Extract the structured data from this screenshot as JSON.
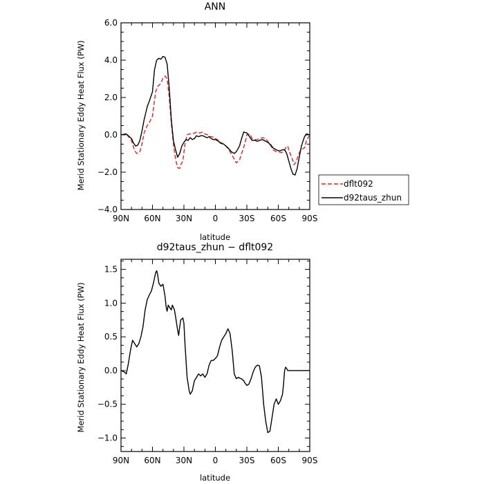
{
  "chart_data": [
    {
      "type": "line",
      "title": "ANN",
      "xlabel": "latitude",
      "ylabel": "Merid Stationary Eddy Heat Flux (PW)",
      "xlim": [
        90,
        -90
      ],
      "ylim": [
        -4.0,
        6.0
      ],
      "x_ticks": [
        {
          "value": 90,
          "label": "90N"
        },
        {
          "value": 60,
          "label": "60N"
        },
        {
          "value": 30,
          "label": "30N"
        },
        {
          "value": 0,
          "label": "0"
        },
        {
          "value": -30,
          "label": "30S"
        },
        {
          "value": -60,
          "label": "60S"
        },
        {
          "value": -90,
          "label": "90S"
        }
      ],
      "y_ticks": [
        {
          "value": -4.0,
          "label": "−4.0"
        },
        {
          "value": -2.0,
          "label": "−2.0"
        },
        {
          "value": 0.0,
          "label": "0.0"
        },
        {
          "value": 2.0,
          "label": "2.0"
        },
        {
          "value": 4.0,
          "label": "4.0"
        },
        {
          "value": 6.0,
          "label": "6.0"
        }
      ],
      "legend_position": "right",
      "series": [
        {
          "name": "dflt092",
          "color": "#e8211c",
          "dash": "dashed",
          "x": [
            90,
            85,
            80,
            77,
            75,
            72,
            70,
            68,
            65,
            63,
            60,
            57,
            55,
            53,
            51,
            50,
            48,
            46,
            44,
            42,
            40,
            38,
            36,
            34,
            33,
            31,
            29,
            27,
            25,
            22,
            20,
            17,
            15,
            12,
            10,
            7,
            5,
            3,
            0,
            -3,
            -5,
            -8,
            -10,
            -13,
            -15,
            -18,
            -20,
            -23,
            -25,
            -28,
            -30,
            -33,
            -35,
            -38,
            -40,
            -42,
            -45,
            -48,
            -50,
            -53,
            -55,
            -58,
            -60,
            -63,
            -65,
            -67,
            -69,
            -70,
            -72,
            -74,
            -75,
            -77,
            -79,
            -81,
            -83,
            -85,
            -87,
            -90
          ],
          "y": [
            0.0,
            0.05,
            -0.3,
            -0.85,
            -1.0,
            -0.9,
            -0.5,
            0.1,
            0.5,
            0.65,
            1.0,
            2.3,
            2.6,
            2.7,
            2.9,
            3.05,
            3.15,
            3.0,
            2.0,
            0.6,
            -0.5,
            -1.3,
            -1.75,
            -1.8,
            -1.6,
            -1.4,
            -0.5,
            0.0,
            0.05,
            0.05,
            0.1,
            0.15,
            0.1,
            0.15,
            0.05,
            0.0,
            -0.1,
            -0.1,
            -0.2,
            -0.3,
            -0.4,
            -0.5,
            -0.6,
            -0.8,
            -1.0,
            -1.3,
            -1.5,
            -1.35,
            -1.0,
            -0.5,
            0.0,
            0.05,
            -0.2,
            -0.25,
            -0.25,
            -0.2,
            -0.15,
            -0.2,
            -0.35,
            -0.6,
            -0.8,
            -0.9,
            -0.9,
            -0.95,
            -0.9,
            -0.7,
            -0.6,
            -0.8,
            -1.1,
            -1.4,
            -1.6,
            -1.45,
            -1.1,
            -0.85,
            -0.75,
            -0.7,
            -0.3,
            0.0
          ]
        },
        {
          "name": "d92taus_zhun",
          "color": "#000000",
          "dash": "solid",
          "x": [
            90,
            85,
            80,
            78,
            76,
            74,
            72,
            70,
            68,
            65,
            63,
            60,
            58,
            56,
            54,
            52,
            50,
            48,
            46,
            44,
            42,
            40,
            38,
            36,
            34,
            32,
            30,
            28,
            26,
            24,
            22,
            20,
            18,
            16,
            14,
            12,
            10,
            8,
            6,
            4,
            2,
            0,
            -3,
            -5,
            -8,
            -10,
            -13,
            -15,
            -18,
            -20,
            -23,
            -25,
            -27,
            -30,
            -32,
            -35,
            -38,
            -40,
            -42,
            -45,
            -48,
            -50,
            -53,
            -55,
            -58,
            -60,
            -62,
            -64,
            -66,
            -68,
            -70,
            -72,
            -74,
            -76,
            -78,
            -80,
            -82,
            -85,
            -87,
            -90
          ],
          "y": [
            0.0,
            0.05,
            -0.2,
            -0.45,
            -0.6,
            -0.55,
            -0.3,
            0.2,
            0.8,
            1.5,
            1.8,
            2.3,
            3.5,
            4.0,
            4.1,
            4.05,
            4.2,
            4.15,
            3.8,
            2.5,
            0.8,
            -0.3,
            -0.8,
            -1.2,
            -1.0,
            -0.6,
            -0.4,
            -0.25,
            -0.3,
            -0.15,
            -0.25,
            -0.2,
            -0.05,
            -0.1,
            -0.05,
            -0.05,
            -0.1,
            -0.15,
            -0.1,
            -0.2,
            -0.25,
            -0.25,
            -0.35,
            -0.45,
            -0.5,
            -0.6,
            -0.75,
            -0.9,
            -1.0,
            -0.9,
            -0.6,
            -0.2,
            0.15,
            0.1,
            -0.05,
            -0.3,
            -0.3,
            -0.35,
            -0.3,
            -0.25,
            -0.35,
            -0.4,
            -0.55,
            -0.7,
            -0.8,
            -0.85,
            -0.85,
            -0.8,
            -0.8,
            -1.0,
            -1.4,
            -1.8,
            -2.1,
            -2.15,
            -1.8,
            -1.2,
            -0.6,
            -0.1,
            0.05,
            0.0
          ]
        }
      ]
    },
    {
      "type": "line",
      "title": "d92taus_zhun − dflt092",
      "xlabel": "latitude",
      "ylabel": "Merid Stationary Eddy Heat Flux (PW)",
      "xlim": [
        90,
        -90
      ],
      "ylim": [
        -1.2,
        1.65
      ],
      "x_ticks": [
        {
          "value": 90,
          "label": "90N"
        },
        {
          "value": 60,
          "label": "60N"
        },
        {
          "value": 30,
          "label": "30N"
        },
        {
          "value": 0,
          "label": "0"
        },
        {
          "value": -30,
          "label": "30S"
        },
        {
          "value": -60,
          "label": "60S"
        },
        {
          "value": -90,
          "label": "90S"
        }
      ],
      "y_ticks": [
        {
          "value": -1.0,
          "label": "−1.0"
        },
        {
          "value": -0.5,
          "label": "−0.5"
        },
        {
          "value": 0.0,
          "label": "0.0"
        },
        {
          "value": 0.5,
          "label": "0.5"
        },
        {
          "value": 1.0,
          "label": "1.0"
        },
        {
          "value": 1.5,
          "label": "1.5"
        }
      ],
      "series": [
        {
          "name": "",
          "color": "#000000",
          "dash": "solid",
          "x": [
            90,
            87,
            85,
            83,
            81,
            79,
            77,
            75,
            73,
            71,
            69,
            67,
            65,
            63,
            61,
            59,
            57,
            56,
            55,
            54,
            52,
            50,
            48,
            47,
            46,
            45,
            43,
            42,
            41,
            39,
            38,
            36,
            35,
            34,
            33,
            31,
            30,
            29,
            27,
            25,
            24,
            22,
            20,
            18,
            16,
            14,
            12,
            10,
            8,
            6,
            4,
            2,
            0,
            -2,
            -4,
            -6,
            -8,
            -10,
            -12,
            -14,
            -16,
            -18,
            -20,
            -22,
            -24,
            -25,
            -26,
            -27,
            -28,
            -30,
            -32,
            -34,
            -36,
            -38,
            -40,
            -42,
            -44,
            -46,
            -48,
            -50,
            -52,
            -54,
            -56,
            -58,
            -60,
            -62,
            -64,
            -65,
            -66,
            -67,
            -68,
            -69,
            -70,
            -71,
            -72,
            -73,
            -74,
            -75,
            -76,
            -77,
            -78,
            -80,
            -82,
            -84,
            -86,
            -88,
            -90
          ],
          "y": [
            0.0,
            -0.02,
            -0.05,
            0.1,
            0.3,
            0.45,
            0.4,
            0.35,
            0.4,
            0.5,
            0.65,
            0.9,
            1.05,
            1.12,
            1.18,
            1.3,
            1.45,
            1.48,
            1.42,
            1.3,
            1.25,
            1.28,
            1.1,
            0.95,
            0.88,
            0.97,
            0.92,
            0.9,
            0.97,
            0.9,
            0.8,
            0.6,
            0.52,
            0.65,
            0.75,
            0.78,
            0.7,
            0.4,
            -0.1,
            -0.3,
            -0.35,
            -0.3,
            -0.15,
            -0.1,
            -0.05,
            -0.08,
            -0.05,
            -0.1,
            -0.05,
            0.08,
            0.15,
            0.15,
            0.18,
            0.22,
            0.35,
            0.45,
            0.5,
            0.55,
            0.62,
            0.55,
            0.3,
            -0.05,
            -0.12,
            -0.1,
            -0.12,
            -0.12,
            -0.14,
            -0.15,
            -0.18,
            -0.22,
            -0.2,
            -0.12,
            -0.02,
            0.05,
            0.08,
            0.07,
            -0.1,
            -0.5,
            -0.75,
            -0.92,
            -0.9,
            -0.7,
            -0.5,
            -0.42,
            -0.5,
            -0.45,
            -0.35,
            -0.2,
            0.0,
            0.05,
            0.03,
            0.0,
            0.0,
            0.0,
            0.0,
            0.0,
            0.0,
            0.0,
            0.0,
            0.0,
            0.0,
            0.0,
            0.0,
            0.0,
            0.0,
            0.0,
            0.0
          ]
        }
      ]
    }
  ]
}
